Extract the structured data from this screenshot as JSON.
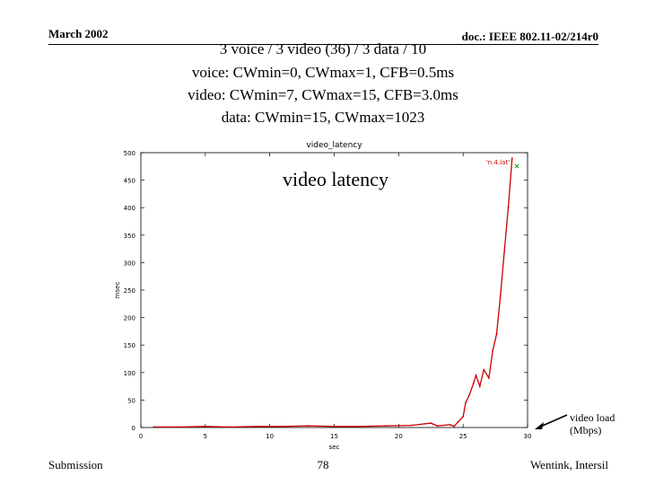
{
  "header": {
    "date": "March 2002",
    "doc_id": "doc.: IEEE 802.11-02/214r0"
  },
  "subtitle_lines": [
    "3 voice / 3 video (36) / 3 data / 10",
    "voice: CWmin=0, CWmax=1, CFB=0.5ms",
    "video: CWmin=7, CWmax=15, CFB=3.0ms",
    "data: CWmin=15, CWmax=1023"
  ],
  "overlay_label": "video latency",
  "callout": {
    "line1": "video load",
    "line2": "(Mbps)"
  },
  "footer": {
    "left": "Submission",
    "page": "78",
    "right": "Wentink, Intersil"
  },
  "chart_data": {
    "type": "line",
    "title": "video_latency",
    "xlabel": "sec",
    "ylabel": "msec",
    "xlim": [
      0,
      30
    ],
    "ylim": [
      0,
      500
    ],
    "x_ticks": [
      0,
      5,
      10,
      15,
      20,
      25,
      30
    ],
    "y_ticks": [
      0,
      50,
      100,
      150,
      200,
      250,
      300,
      350,
      400,
      450,
      500
    ],
    "grid": false,
    "legend": "top-right",
    "series": [
      {
        "name": "'n.4.lat'",
        "color": "#cc0000",
        "x": [
          1,
          3,
          5,
          7,
          9,
          11,
          13,
          15,
          17,
          19,
          21,
          22.5,
          23,
          24,
          24.3,
          24.6,
          25,
          25.2,
          25.5,
          25.8,
          26.0,
          26.3,
          26.6,
          27.0,
          27.3,
          27.6,
          27.9,
          28.2,
          28.5,
          28.8
        ],
        "y": [
          1,
          1,
          2,
          1,
          2,
          2,
          3,
          2,
          2,
          3,
          4,
          8,
          3,
          5,
          2,
          10,
          20,
          45,
          60,
          80,
          95,
          75,
          105,
          90,
          140,
          170,
          240,
          320,
          400,
          490
        ]
      }
    ],
    "legend_marker": {
      "x": 28.5,
      "y": 490
    },
    "colors": {
      "line": "#cc0000",
      "marker": "#00aa00",
      "axis": "#000000"
    }
  }
}
